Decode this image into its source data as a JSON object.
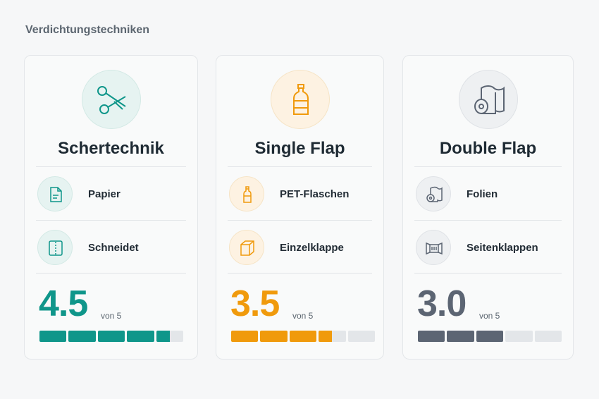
{
  "title": "Verdichtungstechniken",
  "cards": [
    {
      "name": "Schertechnik",
      "color": "#0f968a",
      "tint": "#e6f3f1",
      "line": "#d3e9e5",
      "features": [
        "Papier",
        "Schneidet"
      ],
      "rating": 4.5,
      "rating_label": "4.5",
      "scale_label": "von 5",
      "max": 5
    },
    {
      "name": "Single Flap",
      "color": "#f09a0c",
      "tint": "#fdf2e2",
      "line": "#f6e4c6",
      "features": [
        "PET-Flaschen",
        "Einzelklappe"
      ],
      "rating": 3.5,
      "rating_label": "3.5",
      "scale_label": "von 5",
      "max": 5
    },
    {
      "name": "Double Flap",
      "color": "#5c6573",
      "tint": "#eef0f2",
      "line": "#dfe2e6",
      "features": [
        "Folien",
        "Seitenklappen"
      ],
      "rating": 3,
      "rating_label": "3.0",
      "scale_label": "von 5",
      "max": 5
    }
  ]
}
